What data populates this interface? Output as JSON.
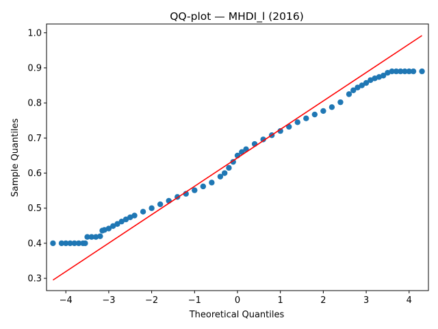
{
  "chart_data": {
    "type": "scatter",
    "title": "QQ-plot — MHDI_l (2016)",
    "xlabel": "Theoretical Quantiles",
    "ylabel": "Sample Quantiles",
    "xlim": [
      -4.45,
      4.45
    ],
    "ylim": [
      0.265,
      1.025
    ],
    "xticks": [
      -4,
      -3,
      -2,
      -1,
      0,
      1,
      2,
      3,
      4
    ],
    "yticks": [
      0.3,
      0.4,
      0.5,
      0.6,
      0.7,
      0.8,
      0.9,
      1.0
    ],
    "xtick_labels": [
      "−4",
      "−3",
      "−2",
      "−1",
      "0",
      "1",
      "2",
      "3",
      "4"
    ],
    "ytick_labels": [
      "0.3",
      "0.4",
      "0.5",
      "0.6",
      "0.7",
      "0.8",
      "0.9",
      "1.0"
    ],
    "grid": false,
    "series": [
      {
        "kind": "points",
        "color": "#1f77b4",
        "x": [
          -4.3,
          -4.1,
          -4.0,
          -3.9,
          -3.8,
          -3.7,
          -3.6,
          -3.55,
          -3.5,
          -3.4,
          -3.3,
          -3.2,
          -3.15,
          -3.1,
          -3.0,
          -2.9,
          -2.8,
          -2.7,
          -2.6,
          -2.5,
          -2.4,
          -2.2,
          -2.0,
          -1.8,
          -1.6,
          -1.4,
          -1.2,
          -1.0,
          -0.8,
          -0.6,
          -0.4,
          -0.3,
          -0.2,
          -0.1,
          0.0,
          0.1,
          0.2,
          0.4,
          0.6,
          0.8,
          1.0,
          1.2,
          1.4,
          1.6,
          1.8,
          2.0,
          2.2,
          2.4,
          2.6,
          2.7,
          2.8,
          2.9,
          3.0,
          3.1,
          3.2,
          3.3,
          3.4,
          3.5,
          3.6,
          3.7,
          3.8,
          3.9,
          4.0,
          4.1,
          4.3
        ],
        "y": [
          0.4,
          0.4,
          0.4,
          0.4,
          0.4,
          0.4,
          0.4,
          0.4,
          0.418,
          0.418,
          0.418,
          0.42,
          0.436,
          0.438,
          0.442,
          0.449,
          0.455,
          0.462,
          0.468,
          0.474,
          0.479,
          0.49,
          0.5,
          0.511,
          0.521,
          0.532,
          0.541,
          0.551,
          0.562,
          0.573,
          0.59,
          0.6,
          0.615,
          0.632,
          0.65,
          0.66,
          0.668,
          0.683,
          0.696,
          0.708,
          0.72,
          0.732,
          0.745,
          0.756,
          0.767,
          0.777,
          0.788,
          0.802,
          0.825,
          0.836,
          0.844,
          0.85,
          0.857,
          0.865,
          0.87,
          0.874,
          0.878,
          0.886,
          0.89,
          0.89,
          0.89,
          0.89,
          0.89,
          0.89,
          0.89
        ]
      },
      {
        "kind": "line",
        "color": "#ff0000",
        "x": [
          -4.3,
          4.3
        ],
        "y": [
          0.295,
          0.992
        ]
      }
    ]
  }
}
